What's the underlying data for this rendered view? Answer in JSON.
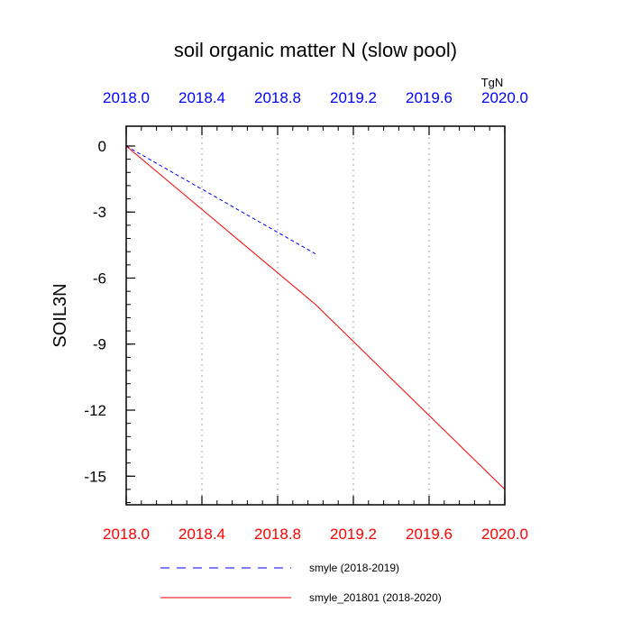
{
  "chart_data": {
    "type": "line",
    "title": "soil organic matter N (slow pool)",
    "ylabel": "SOIL3N",
    "units": "TgN",
    "xlim": [
      2018.0,
      2020.0
    ],
    "ylim": [
      -16.3,
      0.9
    ],
    "x_ticks": [
      "2018.0",
      "2018.4",
      "2018.8",
      "2019.2",
      "2019.6",
      "2020.0"
    ],
    "x_tick_values": [
      2018.0,
      2018.4,
      2018.8,
      2019.2,
      2019.6,
      2020.0
    ],
    "y_ticks": [
      "0",
      "-3",
      "-6",
      "-9",
      "-12",
      "-15"
    ],
    "y_tick_values": [
      0,
      -3,
      -6,
      -9,
      -12,
      -15
    ],
    "grid": "vertical dotted at x ticks",
    "series": [
      {
        "name": "smyle (2018-2019)",
        "color": "#0000ff",
        "style": "dashed",
        "axis": "top",
        "x": [
          2018.0,
          2019.0
        ],
        "y": [
          0,
          -4.9
        ]
      },
      {
        "name": "smyle_201801 (2018-2020)",
        "color": "#ff0000",
        "style": "solid",
        "axis": "bottom",
        "x": [
          2018.0,
          2018.5,
          2019.0,
          2019.5,
          2020.0
        ],
        "y": [
          0,
          -3.6,
          -7.2,
          -11.4,
          -15.6
        ]
      }
    ],
    "top_axis_color": "#0000ff",
    "bottom_axis_color": "#ff0000",
    "legend_position": "bottom"
  }
}
